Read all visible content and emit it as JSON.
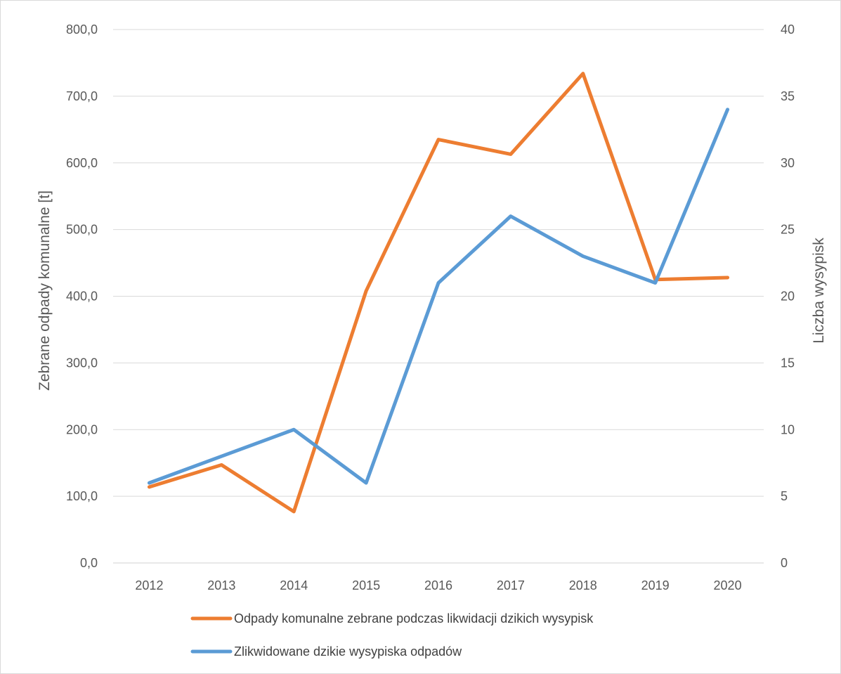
{
  "chart_data": {
    "type": "line",
    "title": "",
    "categories": [
      "2012",
      "2013",
      "2014",
      "2015",
      "2016",
      "2017",
      "2018",
      "2019",
      "2020"
    ],
    "xlabel": "",
    "ylabel": "Zebrane odpady komunalne [t]",
    "y2label": "Liczba wysypisk",
    "ylim": [
      0,
      800
    ],
    "y2lim": [
      0,
      40
    ],
    "y_ticks": [
      0,
      100,
      200,
      300,
      400,
      500,
      600,
      700,
      800
    ],
    "y_tick_labels": [
      "0,0",
      "100,0",
      "200,0",
      "300,0",
      "400,0",
      "500,0",
      "600,0",
      "700,0",
      "800,0"
    ],
    "y2_ticks": [
      0,
      5,
      10,
      15,
      20,
      25,
      30,
      35,
      40
    ],
    "y2_tick_labels": [
      "0",
      "5",
      "10",
      "15",
      "20",
      "25",
      "30",
      "35",
      "40"
    ],
    "grid": true,
    "legend_position": "bottom",
    "series": [
      {
        "name": "Odpady komunalne zebrane podczas likwidacji dzikich wysypisk",
        "axis": "left",
        "color": "#ED7D31",
        "values": [
          114,
          147,
          77,
          408,
          635,
          613,
          734,
          425,
          428
        ]
      },
      {
        "name": "Zlikwidowane dzikie wysypiska odpadów",
        "axis": "right",
        "color": "#5B9BD5",
        "values": [
          6,
          8,
          10,
          6,
          21,
          26,
          23,
          21,
          34
        ]
      }
    ]
  }
}
